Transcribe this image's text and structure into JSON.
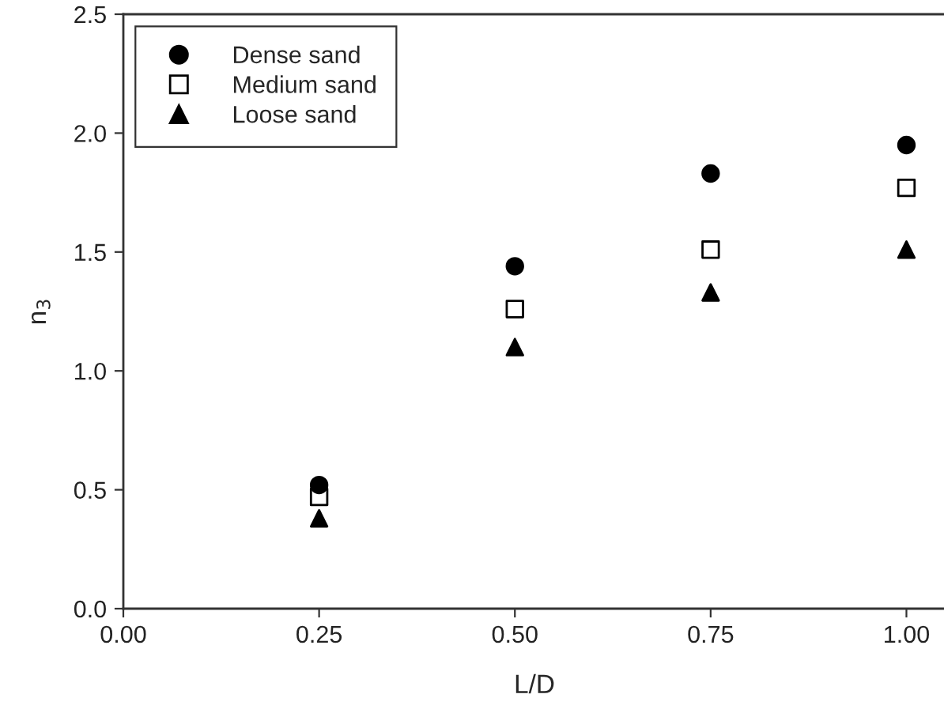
{
  "chart_data": {
    "type": "scatter",
    "xlabel": "L/D",
    "ylabel": "n$_{3}$",
    "x": [
      0.25,
      0.5,
      0.75,
      1.0
    ],
    "series": [
      {
        "name": "Dense sand",
        "color": "#000000",
        "marker": "circle",
        "values": [
          0.52,
          1.44,
          1.83,
          1.95
        ]
      },
      {
        "name": "Medium sand",
        "color": "#000000",
        "marker": "square",
        "values": [
          0.47,
          1.26,
          1.51,
          1.77
        ]
      },
      {
        "name": "Loose sand",
        "color": "#000000",
        "marker": "triangle",
        "values": [
          0.38,
          1.1,
          1.33,
          1.51
        ]
      }
    ],
    "xlim": [
      0,
      1.05
    ],
    "xticks": [
      {
        "value": 0,
        "label": "0.00"
      },
      {
        "value": 0.25,
        "label": "0.25"
      },
      {
        "value": 0.5,
        "label": "0.50"
      },
      {
        "value": 0.75,
        "label": "0.75"
      },
      {
        "value": 1.0,
        "label": "1.00"
      }
    ],
    "ylim": [
      0,
      2.5
    ],
    "yticks": [
      {
        "value": 0,
        "label": "0.0"
      },
      {
        "value": 0.5,
        "label": "0.5"
      },
      {
        "value": 1.0,
        "label": "1.0"
      },
      {
        "value": 1.5,
        "label": "1.5"
      },
      {
        "value": 2.0,
        "label": "2.0"
      },
      {
        "value": 2.5,
        "label": "2.5"
      }
    ],
    "grid": false,
    "legend": "top left"
  }
}
